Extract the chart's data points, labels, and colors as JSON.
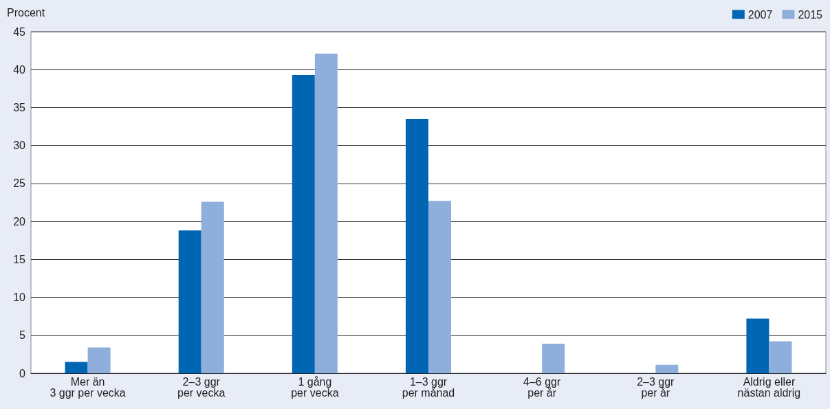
{
  "chart_data": {
    "type": "bar",
    "ylabel": "Procent",
    "categories": [
      "Mer än\n3 ggr per vecka",
      "2–3 ggr\nper vecka",
      "1 gång\nper vecka",
      "1–3 ggr\nper månad",
      "4–6 ggr\nper år",
      "2–3 ggr\nper år",
      "Aldrig eller\nnästan aldrig"
    ],
    "series": [
      {
        "name": "2007",
        "color": "#0066b3",
        "values": [
          1.5,
          18.8,
          39.3,
          33.5,
          null,
          null,
          7.2
        ]
      },
      {
        "name": "2015",
        "color": "#8eaedb",
        "values": [
          3.4,
          22.6,
          42.1,
          22.7,
          3.9,
          1.1,
          4.2
        ]
      }
    ],
    "ylim": [
      0,
      45
    ],
    "yticks": [
      0,
      5,
      10,
      15,
      20,
      25,
      30,
      35,
      40,
      45
    ],
    "grid": "y",
    "legend": "top right"
  }
}
